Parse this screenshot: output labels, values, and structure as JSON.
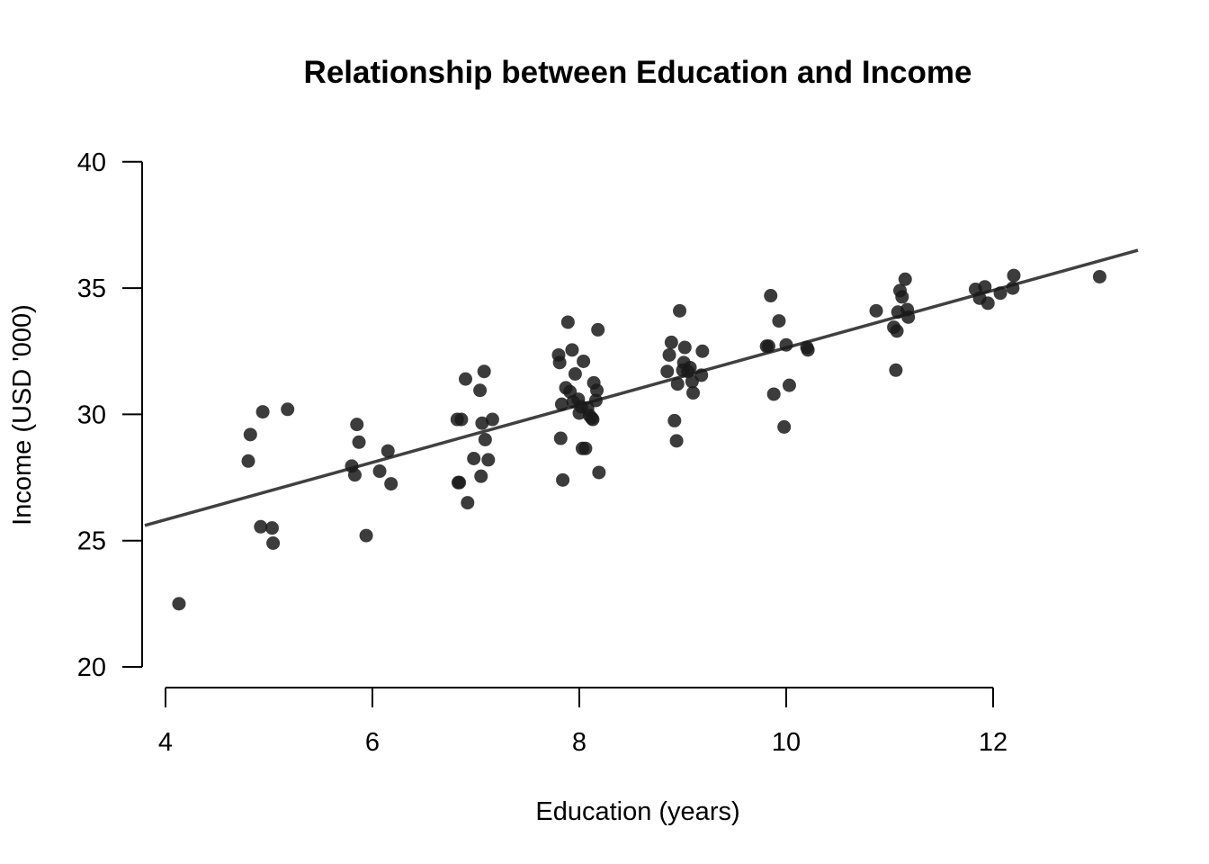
{
  "chart_data": {
    "type": "scatter",
    "title": "Relationship between Education and Income",
    "xlabel": "Education (years)",
    "ylabel": "Income (USD '000)",
    "xlim": [
      3.8,
      13.4
    ],
    "ylim": [
      19.9,
      40.5
    ],
    "x_ticks": [
      4,
      6,
      8,
      10,
      12
    ],
    "y_ticks": [
      20,
      25,
      30,
      35,
      40
    ],
    "grid": false,
    "point_color": "#1a1a1a",
    "line_color": "#404040",
    "trend_line": {
      "x": [
        3.8,
        13.4
      ],
      "y": [
        25.6,
        36.5
      ]
    },
    "points": [
      [
        4.13,
        22.5
      ],
      [
        4.8,
        28.15
      ],
      [
        4.82,
        29.2
      ],
      [
        4.92,
        25.55
      ],
      [
        4.94,
        30.1
      ],
      [
        5.03,
        25.5
      ],
      [
        5.04,
        24.9
      ],
      [
        5.18,
        30.2
      ],
      [
        5.8,
        27.95
      ],
      [
        5.83,
        27.6
      ],
      [
        5.85,
        29.6
      ],
      [
        5.87,
        28.9
      ],
      [
        5.94,
        25.2
      ],
      [
        6.07,
        27.75
      ],
      [
        6.15,
        28.55
      ],
      [
        6.18,
        27.25
      ],
      [
        6.82,
        29.8
      ],
      [
        6.83,
        27.3
      ],
      [
        6.84,
        27.3
      ],
      [
        6.86,
        29.8
      ],
      [
        6.9,
        31.4
      ],
      [
        6.92,
        26.5
      ],
      [
        6.98,
        28.25
      ],
      [
        7.04,
        30.95
      ],
      [
        7.05,
        27.55
      ],
      [
        7.06,
        29.65
      ],
      [
        7.08,
        31.7
      ],
      [
        7.09,
        29.0
      ],
      [
        7.12,
        28.2
      ],
      [
        7.16,
        29.8
      ],
      [
        7.8,
        32.35
      ],
      [
        7.81,
        32.05
      ],
      [
        7.82,
        29.05
      ],
      [
        7.83,
        30.4
      ],
      [
        7.84,
        27.4
      ],
      [
        7.87,
        31.05
      ],
      [
        7.89,
        33.65
      ],
      [
        7.91,
        30.9
      ],
      [
        7.93,
        32.55
      ],
      [
        7.94,
        30.5
      ],
      [
        7.96,
        31.6
      ],
      [
        7.99,
        30.6
      ],
      [
        8.0,
        30.05
      ],
      [
        8.02,
        30.3
      ],
      [
        8.03,
        28.65
      ],
      [
        8.04,
        32.1
      ],
      [
        8.06,
        28.65
      ],
      [
        8.08,
        30.25
      ],
      [
        8.1,
        29.95
      ],
      [
        8.12,
        29.85
      ],
      [
        8.13,
        29.8
      ],
      [
        8.14,
        31.25
      ],
      [
        8.16,
        30.55
      ],
      [
        8.17,
        30.95
      ],
      [
        8.18,
        33.35
      ],
      [
        8.19,
        27.7
      ],
      [
        8.85,
        31.7
      ],
      [
        8.87,
        32.35
      ],
      [
        8.89,
        32.85
      ],
      [
        8.92,
        29.75
      ],
      [
        8.94,
        28.95
      ],
      [
        8.95,
        31.2
      ],
      [
        8.97,
        34.1
      ],
      [
        9.0,
        31.75
      ],
      [
        9.01,
        32.05
      ],
      [
        9.02,
        32.65
      ],
      [
        9.05,
        31.7
      ],
      [
        9.07,
        31.85
      ],
      [
        9.09,
        31.3
      ],
      [
        9.1,
        30.85
      ],
      [
        9.18,
        31.55
      ],
      [
        9.19,
        32.5
      ],
      [
        9.81,
        32.7
      ],
      [
        9.83,
        32.7
      ],
      [
        9.85,
        34.7
      ],
      [
        9.88,
        30.8
      ],
      [
        9.93,
        33.7
      ],
      [
        9.98,
        29.5
      ],
      [
        10.0,
        32.75
      ],
      [
        10.03,
        31.15
      ],
      [
        10.2,
        32.65
      ],
      [
        10.21,
        32.55
      ],
      [
        10.87,
        34.1
      ],
      [
        11.04,
        33.45
      ],
      [
        11.06,
        31.75
      ],
      [
        11.07,
        33.3
      ],
      [
        11.08,
        34.05
      ],
      [
        11.1,
        34.9
      ],
      [
        11.12,
        34.65
      ],
      [
        11.15,
        35.35
      ],
      [
        11.17,
        34.15
      ],
      [
        11.18,
        33.85
      ],
      [
        11.83,
        34.95
      ],
      [
        11.87,
        34.6
      ],
      [
        11.92,
        35.05
      ],
      [
        11.95,
        34.4
      ],
      [
        12.07,
        34.8
      ],
      [
        12.19,
        35.0
      ],
      [
        12.2,
        35.5
      ],
      [
        13.03,
        35.45
      ]
    ]
  }
}
